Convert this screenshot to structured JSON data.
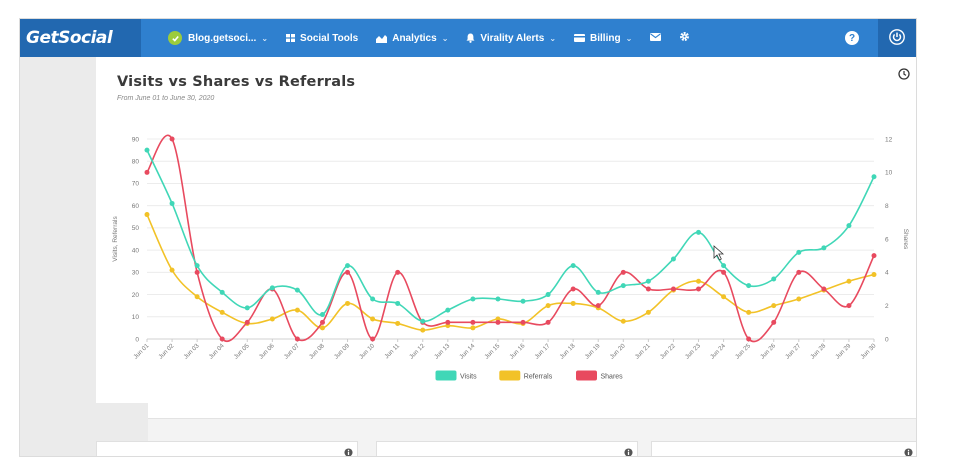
{
  "nav": {
    "brand": "GetSocial",
    "site_label": "Blog.getsoci...",
    "social_tools": "Social Tools",
    "analytics": "Analytics",
    "virality_alerts": "Virality Alerts",
    "billing": "Billing"
  },
  "icons": {
    "site_status": "check-circle-icon",
    "social_tools": "grid-icon",
    "analytics": "area-chart-icon",
    "virality_alerts": "bell-icon",
    "billing": "credit-card-icon",
    "messages": "envelope-icon",
    "settings": "gear-icon",
    "help": "question-icon",
    "power": "power-icon",
    "history": "clock-icon",
    "panel": "info-icon"
  },
  "colors": {
    "nav_bg": "#2f80cf",
    "brand_bg": "#2268b0",
    "visits": "#40d7b7",
    "referrals": "#f2c227",
    "shares": "#e84a5f"
  },
  "chart_data": {
    "type": "line",
    "title": "Visits vs Shares vs Referrals",
    "subtitle": "From June 01 to June 30, 2020",
    "ylabel": "Visits, Referrals",
    "y2label": "Shares",
    "ylim": [
      0,
      90
    ],
    "y2lim": [
      0,
      12
    ],
    "yticks": [
      0,
      10,
      20,
      30,
      40,
      50,
      60,
      70,
      80,
      90
    ],
    "y2ticks": [
      0,
      2,
      4,
      6,
      8,
      10,
      12
    ],
    "grid": true,
    "legend_position": "bottom-center",
    "categories": [
      "Jun 01",
      "Jun 02",
      "Jun 03",
      "Jun 04",
      "Jun 05",
      "Jun 06",
      "Jun 07",
      "Jun 08",
      "Jun 09",
      "Jun 10",
      "Jun 11",
      "Jun 12",
      "Jun 13",
      "Jun 14",
      "Jun 15",
      "Jun 16",
      "Jun 17",
      "Jun 18",
      "Jun 19",
      "Jun 20",
      "Jun 21",
      "Jun 22",
      "Jun 23",
      "Jun 24",
      "Jun 25",
      "Jun 26",
      "Jun 27",
      "Jun 28",
      "Jun 29",
      "Jun 30"
    ],
    "series": [
      {
        "name": "Visits",
        "axis": "left",
        "color": "#40d7b7",
        "values": [
          85,
          61,
          33,
          21,
          14,
          23,
          22,
          11,
          33,
          18,
          16,
          8,
          13,
          18,
          18,
          17,
          20,
          33,
          21,
          24,
          26,
          36,
          48,
          33,
          24,
          27,
          39,
          41,
          51,
          73
        ]
      },
      {
        "name": "Referrals",
        "axis": "left",
        "color": "#f2c227",
        "values": [
          56,
          31,
          19,
          12,
          7,
          9,
          13,
          5,
          16,
          9,
          7,
          4,
          6,
          5,
          9,
          7,
          15,
          16,
          14,
          8,
          12,
          22,
          26,
          19,
          12,
          15,
          18,
          22,
          26,
          29
        ]
      },
      {
        "name": "Shares",
        "axis": "right",
        "color": "#e84a5f",
        "values": [
          10,
          12,
          4,
          0,
          1,
          3,
          0,
          1,
          4,
          0,
          4,
          1,
          1,
          1,
          1,
          1,
          1,
          3,
          2,
          4,
          3,
          3,
          3,
          4,
          0,
          1,
          4,
          3,
          2,
          5
        ]
      }
    ]
  }
}
